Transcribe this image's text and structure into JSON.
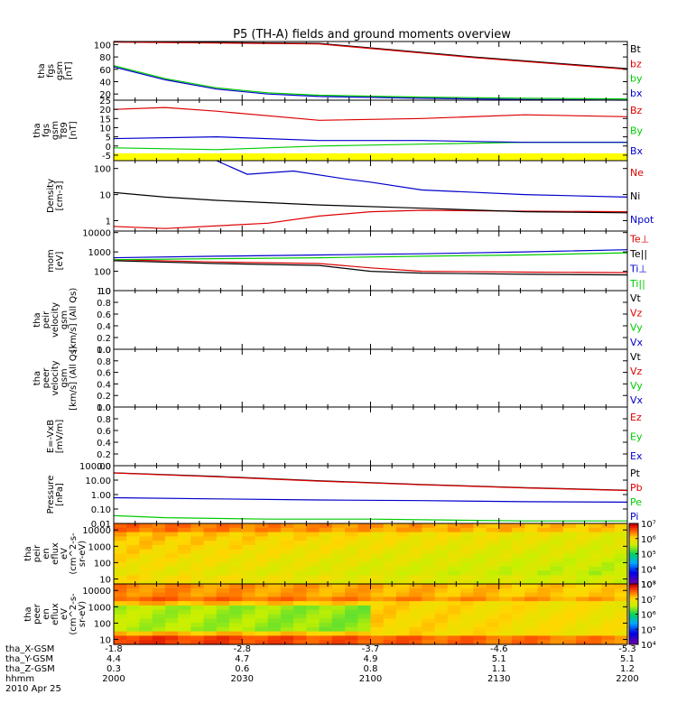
{
  "title": "P5 (TH-A) fields and ground moments overview",
  "colors": {
    "black": "#000000",
    "red": "#dd0000",
    "green": "#00cc00",
    "blue": "#0000cc",
    "yellow": "#ffff00"
  },
  "chart_data": [
    {
      "type": "line",
      "ylabel_lines": [
        "tha",
        "fgs",
        "gsm",
        "[nT]"
      ],
      "ylim": [
        10,
        105
      ],
      "yticks": [
        20,
        40,
        60,
        80,
        100
      ],
      "yscale": "linear",
      "legend": [
        "Bt",
        "bz",
        "by",
        "bx"
      ],
      "legend_colors": [
        "black",
        "red",
        "green",
        "blue"
      ],
      "series": [
        {
          "name": "Bt",
          "color": "black",
          "x": [
            0,
            4,
            7,
            10
          ],
          "y": [
            105,
            102,
            80,
            61
          ]
        },
        {
          "name": "bz",
          "color": "red",
          "x": [
            0,
            4,
            7,
            10
          ],
          "y": [
            104,
            101,
            79,
            60
          ]
        },
        {
          "name": "by",
          "color": "green",
          "x": [
            0,
            1,
            2,
            3,
            4,
            6,
            8,
            10
          ],
          "y": [
            66,
            45,
            30,
            22,
            18,
            15,
            13,
            12
          ]
        },
        {
          "name": "bx",
          "color": "blue",
          "x": [
            0,
            1,
            2,
            3,
            4,
            6,
            8,
            10
          ],
          "y": [
            64,
            43,
            28,
            20,
            16,
            13,
            11,
            10
          ]
        }
      ]
    },
    {
      "type": "line",
      "ylabel_lines": [
        "tha",
        "fgs",
        "gsm",
        "T89",
        "[nT]"
      ],
      "ylim": [
        -8,
        25
      ],
      "yticks": [
        -5,
        0,
        5,
        10,
        15,
        20,
        25
      ],
      "yscale": "linear",
      "band": {
        "from": -8,
        "to": -4,
        "color": "yellow"
      },
      "legend": [
        "Bz",
        "By",
        "Bx"
      ],
      "legend_colors": [
        "red",
        "green",
        "blue"
      ],
      "series": [
        {
          "name": "Bz",
          "color": "red",
          "x": [
            0,
            1,
            2,
            4,
            6,
            8,
            10
          ],
          "y": [
            20,
            21,
            19,
            14,
            15,
            17,
            16
          ]
        },
        {
          "name": "By",
          "color": "green",
          "x": [
            0,
            2,
            4,
            6,
            8,
            10
          ],
          "y": [
            -1,
            -2,
            0,
            1,
            2,
            2
          ]
        },
        {
          "name": "Bx",
          "color": "blue",
          "x": [
            0,
            2,
            4,
            6,
            8,
            10
          ],
          "y": [
            4,
            5,
            3,
            3,
            2,
            2
          ]
        }
      ]
    },
    {
      "type": "line",
      "ylabel_lines": [
        "Density",
        "[cm-3]"
      ],
      "ylim": [
        0.4,
        200
      ],
      "yticks": [
        1,
        10,
        100
      ],
      "yscale": "log",
      "legend": [
        "Ne",
        "Ni",
        "Npot"
      ],
      "legend_colors": [
        "red",
        "black",
        "blue"
      ],
      "series": [
        {
          "name": "Ne",
          "color": "red",
          "x": [
            0,
            1,
            3,
            4,
            5,
            6,
            8,
            10
          ],
          "y": [
            0.6,
            0.5,
            0.8,
            1.5,
            2.2,
            2.5,
            2.3,
            2.2
          ]
        },
        {
          "name": "Ni",
          "color": "black",
          "x": [
            0,
            1,
            2,
            4,
            6,
            8,
            10
          ],
          "y": [
            12,
            8,
            6,
            4,
            3,
            2.2,
            2
          ]
        },
        {
          "name": "Npot",
          "color": "blue",
          "x": [
            2,
            2.6,
            3.5,
            4.5,
            5,
            6,
            8,
            10
          ],
          "y": [
            200,
            60,
            80,
            40,
            30,
            15,
            10,
            8
          ]
        }
      ]
    },
    {
      "type": "line",
      "ylabel_lines": [
        "mom",
        "[eV]"
      ],
      "ylim": [
        10,
        12000
      ],
      "yticks": [
        10,
        100,
        1000,
        10000
      ],
      "yscale": "log",
      "legend": [
        "Te⊥",
        "Te||",
        "Ti⊥",
        "Ti||"
      ],
      "legend_colors": [
        "red",
        "black",
        "blue",
        "green"
      ],
      "series": [
        {
          "name": "Te⊥",
          "color": "red",
          "x": [
            0,
            2,
            4,
            5,
            6,
            8,
            10
          ],
          "y": [
            400,
            300,
            250,
            150,
            100,
            90,
            85
          ]
        },
        {
          "name": "Te||",
          "color": "black",
          "x": [
            0,
            2,
            4,
            5,
            6,
            8,
            10
          ],
          "y": [
            350,
            250,
            200,
            100,
            80,
            70,
            65
          ]
        },
        {
          "name": "Ti⊥",
          "color": "blue",
          "x": [
            0,
            2,
            4,
            6,
            8,
            10
          ],
          "y": [
            500,
            600,
            700,
            800,
            1000,
            1300
          ]
        },
        {
          "name": "Ti||",
          "color": "green",
          "x": [
            0,
            2,
            4,
            6,
            8,
            10
          ],
          "y": [
            400,
            450,
            500,
            600,
            700,
            900
          ]
        }
      ]
    },
    {
      "type": "line",
      "ylabel_lines": [
        "tha",
        "peir",
        "velocity",
        "gsm",
        "[km/s] (All Qs)"
      ],
      "ylim": [
        0,
        1
      ],
      "yticks": [
        0.0,
        0.2,
        0.4,
        0.6,
        0.8,
        1.0
      ],
      "tick_format": "1dp",
      "legend": [
        "Vt",
        "Vz",
        "Vy",
        "Vx"
      ],
      "legend_colors": [
        "black",
        "red",
        "green",
        "blue"
      ],
      "series": []
    },
    {
      "type": "line",
      "ylabel_lines": [
        "tha",
        "peer",
        "velocity",
        "gsm",
        "[km/s] (All Qs)"
      ],
      "ylim": [
        0,
        1
      ],
      "yticks": [
        0.0,
        0.2,
        0.4,
        0.6,
        0.8,
        1.0
      ],
      "tick_format": "1dp",
      "legend": [
        "Vt",
        "Vz",
        "Vy",
        "Vx"
      ],
      "legend_colors": [
        "black",
        "red",
        "green",
        "blue"
      ],
      "series": []
    },
    {
      "type": "line",
      "ylabel_lines": [
        "E=-VxB",
        "[mV/m]"
      ],
      "ylim": [
        0,
        1
      ],
      "yticks": [
        0.0,
        0.2,
        0.4,
        0.6,
        0.8,
        1.0
      ],
      "tick_format": "1dp",
      "legend": [
        "Ez",
        "Ey",
        "Ex"
      ],
      "legend_colors": [
        "red",
        "green",
        "blue"
      ],
      "series": []
    },
    {
      "type": "line",
      "ylabel_lines": [
        "Pressure",
        "[nPa]"
      ],
      "ylim": [
        0.01,
        100
      ],
      "yticks": [
        0.01,
        0.1,
        1,
        10,
        100
      ],
      "tick_labels": [
        "0.01",
        "0.10",
        "1.00",
        "10.00",
        "100.00"
      ],
      "yscale": "log",
      "legend": [
        "Pt",
        "Pb",
        "Pe",
        "Pi"
      ],
      "legend_colors": [
        "black",
        "red",
        "green",
        "blue"
      ],
      "series": [
        {
          "name": "Pt",
          "color": "black",
          "x": [
            0,
            2,
            4,
            6,
            8,
            10
          ],
          "y": [
            32,
            18,
            9,
            5,
            3,
            2
          ]
        },
        {
          "name": "Pb",
          "color": "red",
          "x": [
            0,
            2,
            4,
            6,
            8,
            10
          ],
          "y": [
            31,
            17,
            8.5,
            4.8,
            2.9,
            1.9
          ]
        },
        {
          "name": "Pe",
          "color": "green",
          "x": [
            0,
            1,
            3,
            5,
            8,
            10
          ],
          "y": [
            0.035,
            0.025,
            0.02,
            0.02,
            0.015,
            0.015
          ]
        },
        {
          "name": "Pi",
          "color": "blue",
          "x": [
            0,
            2,
            4,
            6,
            8,
            10
          ],
          "y": [
            0.6,
            0.5,
            0.42,
            0.38,
            0.32,
            0.3
          ]
        }
      ]
    },
    {
      "type": "heatmap",
      "ylabel_lines": [
        "tha",
        "peir",
        "en",
        "eflux",
        "eV",
        "(cm^2-s-",
        "sr-eV)"
      ],
      "ylim": [
        5,
        25000
      ],
      "yticks": [
        10,
        100,
        1000,
        10000
      ],
      "yscale": "log",
      "colorbar_ticks": [
        "10³",
        "10⁴",
        "10⁵",
        "10⁶",
        "10⁷"
      ],
      "colorbar_range": [
        3,
        7
      ]
    },
    {
      "type": "heatmap",
      "ylabel_lines": [
        "tha",
        "peer",
        "en",
        "eflux",
        "eV",
        "(cm^2-s-",
        "sr-eV)"
      ],
      "ylim": [
        5,
        25000
      ],
      "yticks": [
        10,
        100,
        1000,
        10000
      ],
      "yscale": "log",
      "colorbar_ticks": [
        "10⁴",
        "10⁵",
        "10⁶",
        "10⁷",
        "10⁸"
      ],
      "colorbar_range": [
        4,
        8
      ]
    }
  ],
  "x_axis": {
    "row_labels": [
      "tha_X-GSM",
      "tha_Y-GSM",
      "tha_Z-GSM",
      "hhmm",
      "2010 Apr 25"
    ],
    "ticks": [
      {
        "x": 0,
        "values": [
          "-1.8",
          "4.4",
          "0.3",
          "2000"
        ]
      },
      {
        "x": 2.5,
        "values": [
          "-2.8",
          "4.7",
          "0.6",
          "2030"
        ]
      },
      {
        "x": 5,
        "values": [
          "-3.7",
          "4.9",
          "0.8",
          "2100"
        ]
      },
      {
        "x": 7.5,
        "values": [
          "-4.6",
          "5.1",
          "1.1",
          "2130"
        ]
      },
      {
        "x": 10,
        "values": [
          "-5.3",
          "5.1",
          "1.2",
          "2200"
        ]
      }
    ]
  }
}
